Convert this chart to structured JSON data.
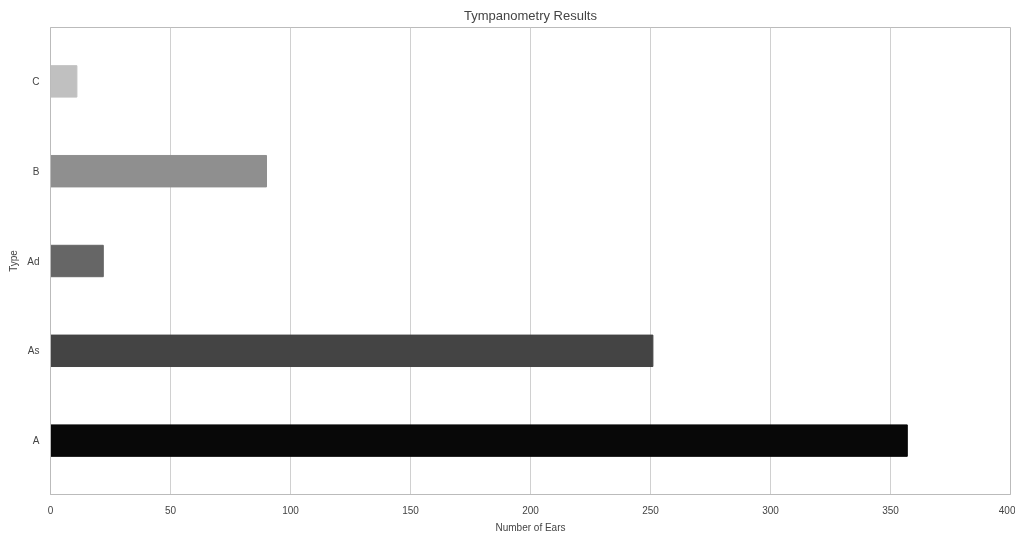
{
  "chart_data": {
    "type": "bar",
    "orientation": "horizontal",
    "title": "Tympanometry Results",
    "xlabel": "Number of Ears",
    "ylabel": "Type",
    "categories": [
      "C",
      "B",
      "Ad",
      "As",
      "A"
    ],
    "values": [
      11,
      90,
      22,
      251,
      357
    ],
    "colors": [
      "#c0c0c0",
      "#8f8f8f",
      "#666666",
      "#444444",
      "#080808"
    ],
    "xlim": [
      0,
      400
    ],
    "xticks": [
      0,
      50,
      100,
      150,
      200,
      250,
      300,
      350,
      400
    ],
    "grid": "x"
  }
}
